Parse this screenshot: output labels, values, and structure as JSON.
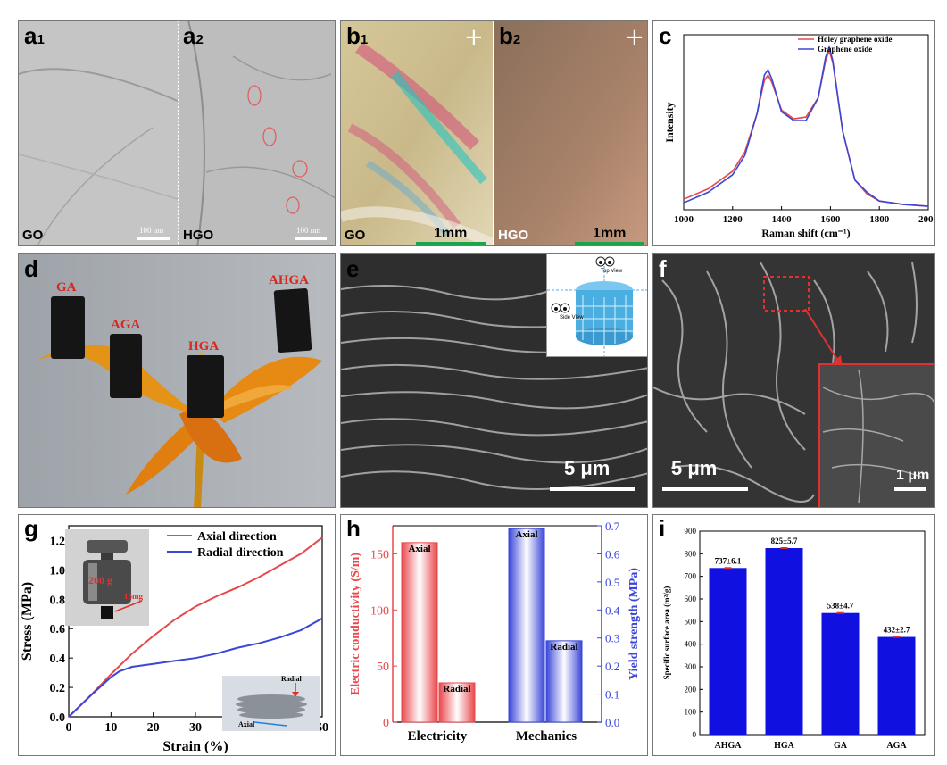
{
  "panels": {
    "a1": {
      "label": "a",
      "sub": "1",
      "tag": "GO",
      "scale": "100 nm"
    },
    "a2": {
      "label": "a",
      "sub": "2",
      "tag": "HGO",
      "scale": "100 nm"
    },
    "b1": {
      "label": "b",
      "sub": "1",
      "tag": "GO",
      "scale": "1mm"
    },
    "b2": {
      "label": "b",
      "sub": "2",
      "tag": "HGO",
      "scale": "1mm"
    },
    "c": {
      "label": "c"
    },
    "d": {
      "label": "d",
      "samples": [
        "GA",
        "AGA",
        "HGA",
        "AHGA"
      ]
    },
    "e": {
      "label": "e",
      "scale": "5 μm",
      "inset_top": "Top View",
      "inset_side": "Side View"
    },
    "f": {
      "label": "f",
      "scale": "5 μm",
      "inset_scale": "1 μm"
    },
    "g": {
      "label": "g",
      "weight": "200 g",
      "mass": "15mg",
      "radial": "Radial",
      "axial": "Axial"
    },
    "h": {
      "label": "h"
    },
    "i": {
      "label": "i"
    }
  },
  "chart_data": [
    {
      "id": "c",
      "type": "line",
      "xlabel": "Raman shift (cm⁻¹)",
      "ylabel": "Intensity",
      "xlim": [
        1000,
        2000
      ],
      "xticks": [
        1000,
        1200,
        1400,
        1600,
        1800,
        2000
      ],
      "legend_position": "top-right",
      "series": [
        {
          "name": "Holey graphene oxide",
          "color": "#e8484c",
          "x": [
            1000,
            1100,
            1200,
            1250,
            1300,
            1330,
            1345,
            1360,
            1400,
            1450,
            1500,
            1550,
            1580,
            1595,
            1610,
            1650,
            1700,
            1750,
            1800,
            1900,
            2000
          ],
          "y": [
            0.06,
            0.12,
            0.22,
            0.33,
            0.55,
            0.74,
            0.77,
            0.73,
            0.57,
            0.52,
            0.53,
            0.64,
            0.85,
            0.91,
            0.84,
            0.45,
            0.17,
            0.09,
            0.05,
            0.03,
            0.02
          ]
        },
        {
          "name": "Graphene oxide",
          "color": "#3a46d8",
          "x": [
            1000,
            1100,
            1200,
            1250,
            1300,
            1330,
            1345,
            1360,
            1400,
            1450,
            1500,
            1550,
            1580,
            1595,
            1610,
            1650,
            1700,
            1750,
            1800,
            1900,
            2000
          ],
          "y": [
            0.04,
            0.1,
            0.2,
            0.31,
            0.55,
            0.77,
            0.8,
            0.75,
            0.56,
            0.51,
            0.51,
            0.64,
            0.87,
            0.93,
            0.85,
            0.45,
            0.17,
            0.1,
            0.05,
            0.03,
            0.02
          ]
        }
      ]
    },
    {
      "id": "g",
      "type": "line",
      "xlabel": "Strain (%)",
      "ylabel": "Stress (MPa)",
      "xlim": [
        0,
        60
      ],
      "ylim": [
        0,
        1.3
      ],
      "xticks": [
        0,
        10,
        20,
        30,
        40,
        50,
        60
      ],
      "yticks": [
        0.0,
        0.2,
        0.4,
        0.6,
        0.8,
        1.0,
        1.2
      ],
      "legend_position": "top-right",
      "series": [
        {
          "name": "Axial direction",
          "color": "#e8484c",
          "x": [
            0,
            5,
            10,
            15,
            20,
            25,
            30,
            35,
            40,
            45,
            50,
            55,
            60
          ],
          "y": [
            0,
            0.14,
            0.29,
            0.43,
            0.55,
            0.66,
            0.75,
            0.82,
            0.88,
            0.95,
            1.03,
            1.11,
            1.22
          ]
        },
        {
          "name": "Radial direction",
          "color": "#3a46d8",
          "x": [
            0,
            5,
            10,
            12,
            15,
            20,
            25,
            30,
            35,
            40,
            45,
            50,
            55,
            60
          ],
          "y": [
            0,
            0.14,
            0.27,
            0.31,
            0.34,
            0.36,
            0.38,
            0.4,
            0.43,
            0.47,
            0.5,
            0.54,
            0.59,
            0.67
          ]
        }
      ]
    },
    {
      "id": "h",
      "type": "bar",
      "categories": [
        "Electricity",
        "Mechanics"
      ],
      "left_ylabel": "Electric conductivity (S/m)",
      "right_ylabel": "Yield strength (MPa)",
      "left_ylim": [
        0,
        175
      ],
      "left_yticks": [
        0,
        50,
        100,
        150
      ],
      "right_ylim": [
        0,
        0.7
      ],
      "right_yticks": [
        0.0,
        0.1,
        0.2,
        0.3,
        0.4,
        0.5,
        0.6,
        0.7
      ],
      "bars": [
        {
          "category": "Electricity",
          "label": "Axial",
          "value": 160,
          "axis": "left",
          "color": "#e8484c"
        },
        {
          "category": "Electricity",
          "label": "Radial",
          "value": 35,
          "axis": "left",
          "color": "#e8484c"
        },
        {
          "category": "Mechanics",
          "label": "Axial",
          "value": 0.69,
          "axis": "right",
          "color": "#3a46d8"
        },
        {
          "category": "Mechanics",
          "label": "Radial",
          "value": 0.29,
          "axis": "right",
          "color": "#3a46d8"
        }
      ]
    },
    {
      "id": "i",
      "type": "bar",
      "categories": [
        "AHGA",
        "HGA",
        "GA",
        "AGA"
      ],
      "values": [
        737,
        825,
        538,
        432
      ],
      "labels": [
        "737±6.1",
        "825±5.7",
        "538±4.7",
        "432±2.7"
      ],
      "ylabel": "Specific surface area (m²/g)",
      "ylim": [
        0,
        900
      ],
      "yticks": [
        0,
        100,
        200,
        300,
        400,
        500,
        600,
        700,
        800,
        900
      ],
      "color": "#1010e0"
    }
  ]
}
